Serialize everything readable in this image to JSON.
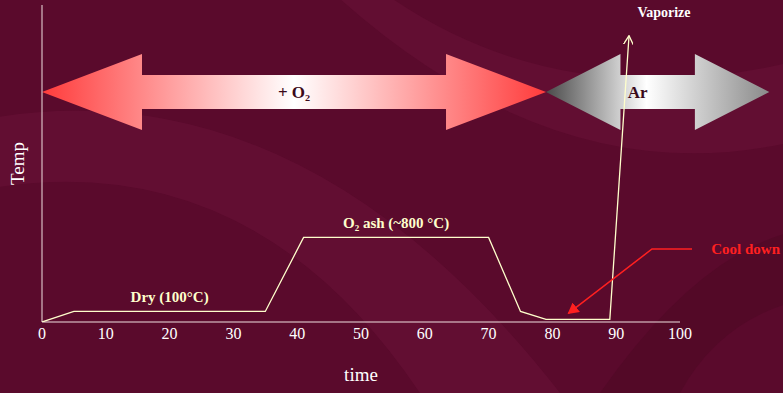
{
  "chart_data": {
    "type": "line",
    "x_label": "time",
    "y_label": "Temp",
    "x": [
      0,
      5,
      35,
      41,
      70,
      75,
      79,
      89,
      92
    ],
    "values": [
      0,
      100,
      100,
      800,
      800,
      100,
      25,
      25,
      2700
    ],
    "color": "#ffffcc",
    "xlim": [
      0,
      100
    ],
    "xticks": [
      0,
      10,
      20,
      30,
      40,
      50,
      60,
      70,
      80,
      90,
      100
    ],
    "ylim": [
      0,
      3000
    ],
    "tick_labels": "x",
    "grid": false,
    "phases": [
      {
        "label": "+ O₂",
        "start": 0,
        "end": 79
      },
      {
        "label": "Ar",
        "start": 79,
        "end": 114
      }
    ],
    "annotations": [
      "Dry (100°C)",
      "O₂ ash (~800 °C)",
      "Vaporize",
      "Cool down"
    ]
  }
}
